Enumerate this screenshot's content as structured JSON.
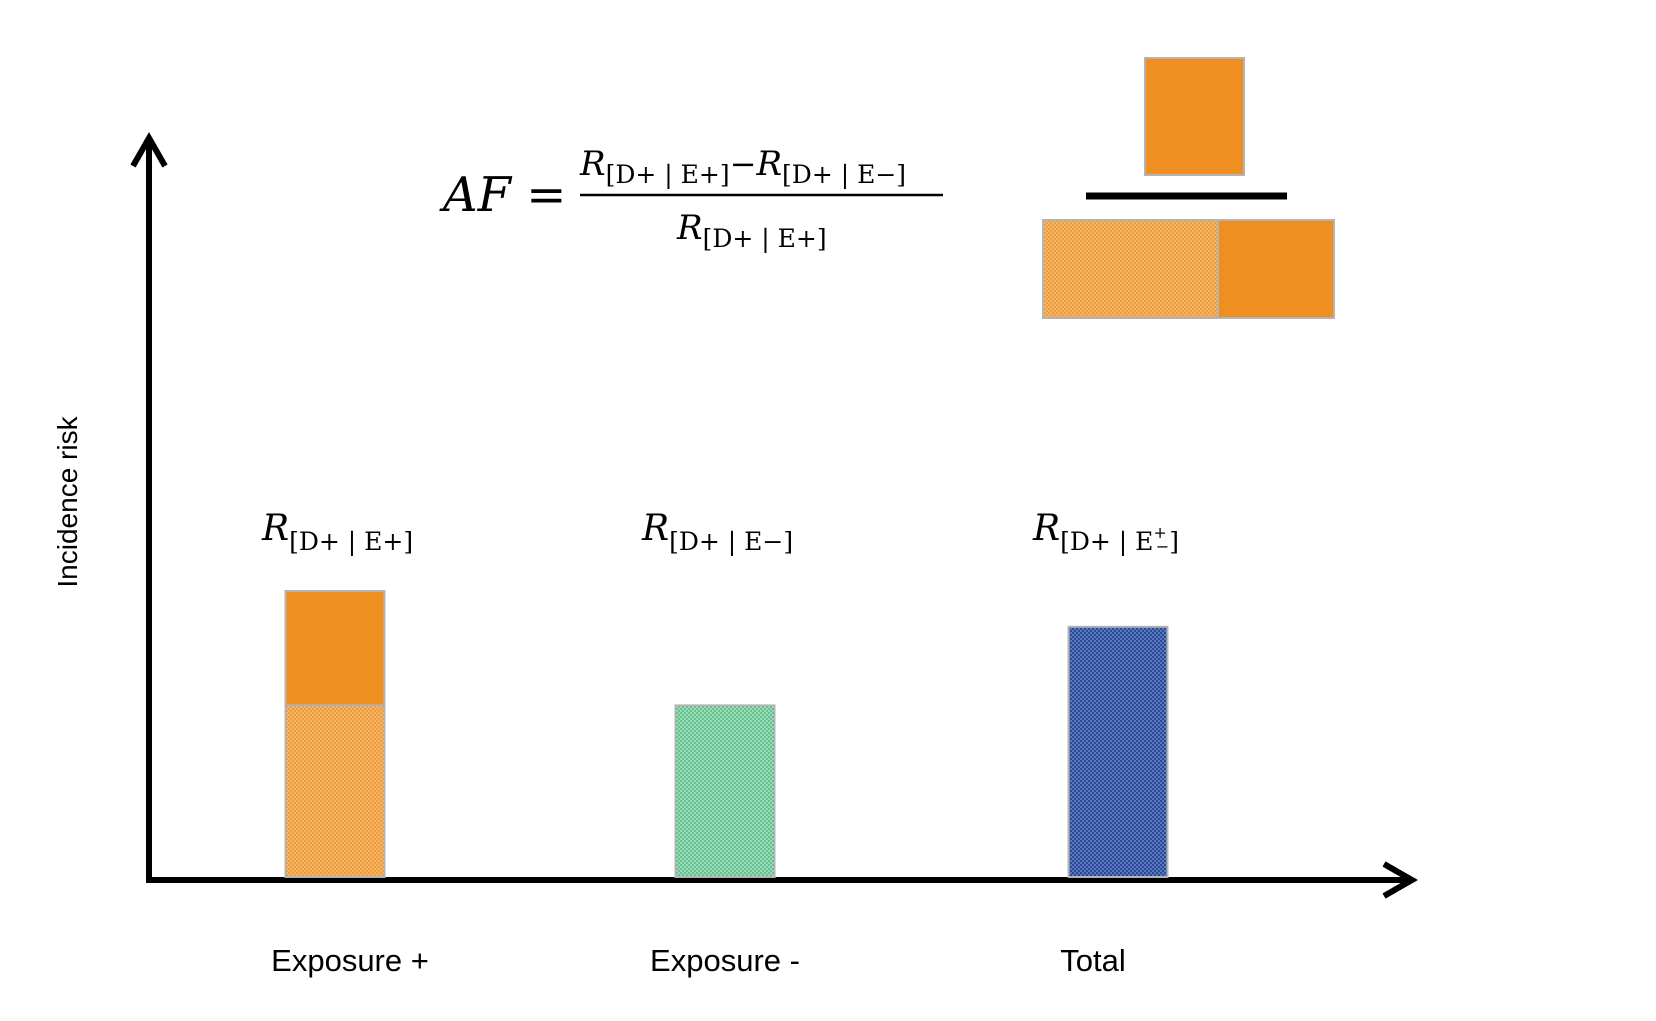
{
  "colors": {
    "orange": "#f08f21",
    "orange_light": "#f3a64a",
    "green": "#6fca98",
    "blue": "#2f4f9a",
    "axis": "#000000",
    "bar_border": "#b4b4b4"
  },
  "formula": {
    "lhs": "AF =",
    "numerator_a": "R",
    "numerator_a_sub": "[D+ | E+]",
    "minus": "−",
    "numerator_b": "R",
    "numerator_b_sub": "[D+ | E−]",
    "denominator": "R",
    "denominator_sub": "[D+ | E+]"
  },
  "chart_data": {
    "type": "bar",
    "ylabel": "Incidence risk",
    "xlabel": "",
    "ylim": [
      0,
      1
    ],
    "categories": [
      "Exposure +",
      "Exposure -",
      "Total"
    ],
    "bar_labels": [
      {
        "main": "R",
        "sub": "[D+ | E+]"
      },
      {
        "main": "R",
        "sub": "[D+ | E−]"
      },
      {
        "main": "R",
        "sub_pre": "[D+ | E",
        "sub_sup": "+",
        "sub_sub": "−",
        "sub_post": "]"
      }
    ],
    "bars": [
      {
        "category": "Exposure +",
        "segments": [
          {
            "part": "baseline",
            "value": 0.24,
            "color": "#f3a64a",
            "pattern": "dotted"
          },
          {
            "part": "attributable",
            "value": 0.16,
            "color": "#f08f21",
            "pattern": "solid"
          }
        ]
      },
      {
        "category": "Exposure -",
        "segments": [
          {
            "part": "baseline",
            "value": 0.24,
            "color": "#6fca98",
            "pattern": "dotted"
          }
        ]
      },
      {
        "category": "Total",
        "segments": [
          {
            "part": "total",
            "value": 0.35,
            "color": "#2f4f9a",
            "pattern": "dotted"
          }
        ]
      }
    ],
    "fraction_icon": {
      "numerator": [
        {
          "part": "attributable",
          "color": "#f08f21",
          "pattern": "solid"
        }
      ],
      "denominator": [
        {
          "part": "baseline",
          "color": "#f3a64a",
          "pattern": "dotted"
        },
        {
          "part": "attributable",
          "color": "#f08f21",
          "pattern": "solid"
        }
      ]
    }
  }
}
